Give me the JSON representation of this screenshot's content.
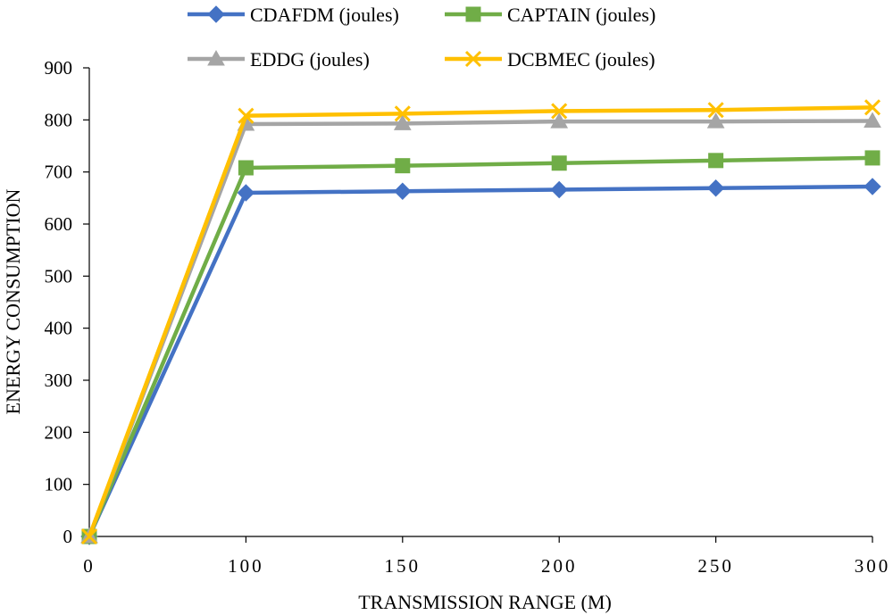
{
  "chart_data": {
    "type": "line",
    "title": "",
    "xlabel": "TRANSMISSION RANGE (M)",
    "ylabel": "ENERGY CONSUMPTION",
    "x": [
      0,
      100,
      150,
      200,
      250,
      300
    ],
    "x_tick_labels": [
      "0",
      "100",
      "150",
      "200",
      "250",
      "300"
    ],
    "y_tick_labels": [
      "0",
      "100",
      "200",
      "300",
      "400",
      "500",
      "600",
      "700",
      "800",
      "900"
    ],
    "ylim": [
      0,
      900
    ],
    "y_ticks": [
      0,
      100,
      200,
      300,
      400,
      500,
      600,
      700,
      800,
      900
    ],
    "legend_position": "top",
    "series": [
      {
        "name": "CDAFDM (joules)",
        "marker": "diamond",
        "color": "#4472C4",
        "values": [
          0,
          660,
          663,
          666,
          669,
          672
        ]
      },
      {
        "name": "CAPTAIN (joules)",
        "marker": "square",
        "color": "#70AD47",
        "values": [
          0,
          708,
          712,
          717,
          722,
          727
        ]
      },
      {
        "name": "EDDG (joules)",
        "marker": "triangle",
        "color": "#A5A5A5",
        "values": [
          0,
          792,
          793,
          797,
          797,
          798
        ]
      },
      {
        "name": "DCBMEC (joules)",
        "marker": "x",
        "color": "#FFC000",
        "values": [
          0,
          808,
          812,
          817,
          819,
          824
        ]
      }
    ]
  }
}
